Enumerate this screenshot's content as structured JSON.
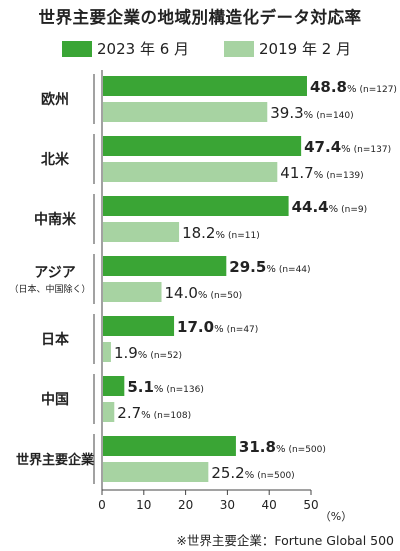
{
  "chart_data": {
    "type": "bar",
    "orientation": "horizontal",
    "title": "世界主要企業の地域別構造化データ対応率",
    "categories": [
      "欧州",
      "北米",
      "中南米",
      "アジア",
      "日本",
      "中国",
      "世界主要企業"
    ],
    "category_sublabels": [
      "",
      "",
      "",
      "（日本、中国除く）",
      "",
      "",
      ""
    ],
    "series": [
      {
        "name": "2023年６月",
        "color": "#3aa535",
        "values": [
          48.8,
          47.4,
          44.4,
          29.5,
          17.0,
          5.1,
          31.8
        ],
        "value_labels": [
          "48.8",
          "47.4",
          "44.4",
          "29.5",
          "17.0",
          "5.1",
          "31.8"
        ],
        "n": [
          "(n=127)",
          "(n=137)",
          "(n=9)",
          "(n=44)",
          "(n=47)",
          "(n=136)",
          "(n=500)"
        ]
      },
      {
        "name": "2019年２月",
        "color": "#a7d3a2",
        "values": [
          39.3,
          41.7,
          18.2,
          14.0,
          1.9,
          2.7,
          25.2
        ],
        "value_labels": [
          "39.3",
          "41.7",
          "18.2",
          "14.0",
          "1.9",
          "2.7",
          "25.2"
        ],
        "n": [
          "(n=140)",
          "(n=139)",
          "(n=11)",
          "(n=50)",
          "(n=52)",
          "(n=108)",
          "(n=500)"
        ]
      }
    ],
    "percent_sign": "%",
    "xlim": [
      0,
      50
    ],
    "xticks": [
      "0",
      "10",
      "20",
      "30",
      "40",
      "50"
    ],
    "xlabel": "（%）",
    "grid": false,
    "legend_position": "top"
  },
  "legend": {
    "item1": "2023 年 6 月",
    "item2": "2019 年 2 月"
  },
  "footnote": "※世界主要企業：Fortune Global 500"
}
